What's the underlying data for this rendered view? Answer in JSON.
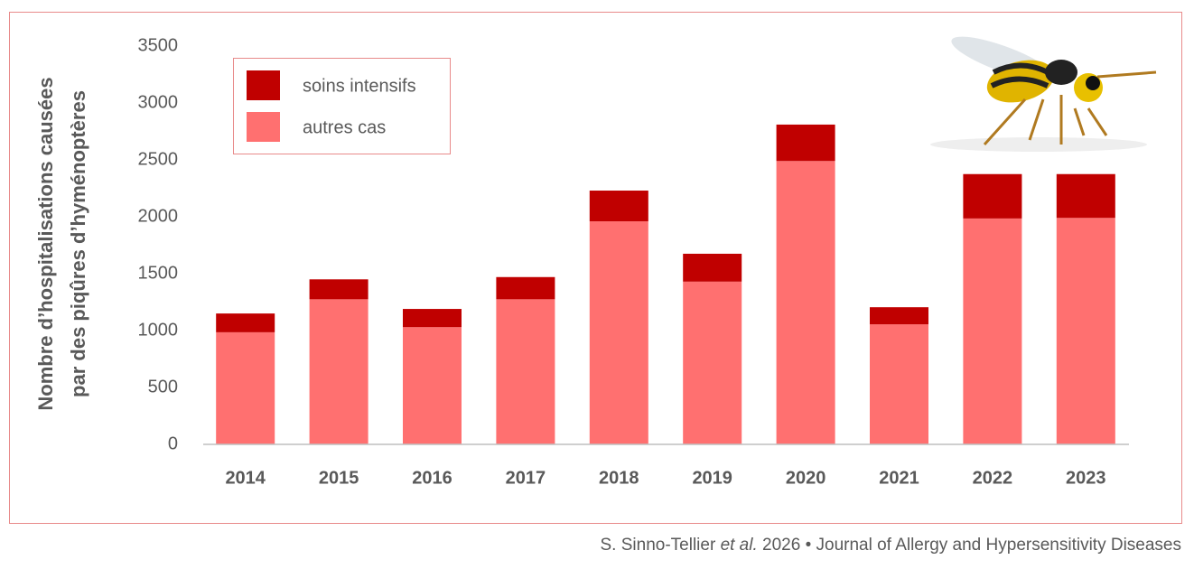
{
  "chart_data": {
    "type": "stacked_bar",
    "ylabel": [
      "Nombre d’hospitalisations causées",
      "par des piqûres d’hyménoptères"
    ],
    "categories": [
      "2014",
      "2015",
      "2016",
      "2017",
      "2018",
      "2019",
      "2020",
      "2021",
      "2022",
      "2023"
    ],
    "series": [
      {
        "name": "soins intensifs",
        "color": "#c00000",
        "values": [
          165,
          175,
          160,
          195,
          270,
          245,
          320,
          150,
          390,
          385
        ]
      },
      {
        "name": "autres cas",
        "color": "#ff7070",
        "values": [
          985,
          1275,
          1030,
          1275,
          1960,
          1430,
          2490,
          1055,
          1985,
          1990
        ]
      }
    ],
    "ylim": [
      0,
      3500
    ],
    "yticks": [
      0,
      500,
      1000,
      1500,
      2000,
      2500,
      3000,
      3500
    ],
    "grid": false,
    "legend": "upper left",
    "source": [
      "S. Sinno-Tellier ",
      "et al.",
      " 2026 • Journal of Allergy and Hypersensitivity Diseases"
    ]
  }
}
